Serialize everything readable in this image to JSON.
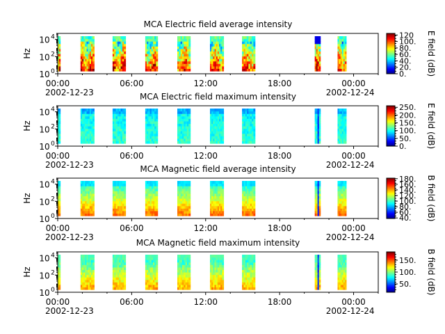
{
  "chart_data": [
    {
      "type": "heatmap",
      "title": "MCA  Electric field average intensity",
      "ylabel": "Hz",
      "y_scale": "log",
      "y_ticks": [
        {
          "base": "10",
          "exp": "0"
        },
        {
          "base": "10",
          "exp": "2"
        },
        {
          "base": "10",
          "exp": "4"
        }
      ],
      "x_ticks": [
        "00:00",
        "06:00",
        "12:00",
        "18:00",
        "00:00"
      ],
      "x_dates": [
        "2002-12-23",
        "2002-12-24"
      ],
      "colorbar_label": "E field (dB)",
      "colorbar_ticks": [
        "0.",
        "20.",
        "40.",
        "60.",
        "80.",
        "100.",
        "120"
      ],
      "colorbar_range": [
        0,
        125
      ],
      "style": "avg",
      "segments": [
        [
          0.0,
          0.2
        ],
        [
          1.85,
          2.95
        ],
        [
          4.45,
          5.5
        ],
        [
          7.1,
          8.1
        ],
        [
          9.7,
          10.75
        ],
        [
          12.35,
          13.45
        ],
        [
          14.95,
          16.0
        ],
        [
          20.85,
          21.3
        ],
        [
          22.7,
          23.4
        ]
      ]
    },
    {
      "type": "heatmap",
      "title": "MCA  Electric field maximum intensity",
      "ylabel": "Hz",
      "y_scale": "log",
      "y_ticks": [
        {
          "base": "10",
          "exp": "0"
        },
        {
          "base": "10",
          "exp": "2"
        },
        {
          "base": "10",
          "exp": "4"
        }
      ],
      "x_ticks": [
        "00:00",
        "06:00",
        "12:00",
        "18:00",
        "00:00"
      ],
      "x_dates": [
        "2002-12-23",
        "2002-12-24"
      ],
      "colorbar_label": "E field (dB)",
      "colorbar_ticks": [
        "0.",
        "50.",
        "100.",
        "150.",
        "200.",
        "250."
      ],
      "colorbar_range": [
        0,
        260
      ],
      "style": "max",
      "segments": [
        [
          0.0,
          0.2
        ],
        [
          1.85,
          2.95
        ],
        [
          4.45,
          5.5
        ],
        [
          7.1,
          8.1
        ],
        [
          9.7,
          10.75
        ],
        [
          12.35,
          13.45
        ],
        [
          14.95,
          16.0
        ],
        [
          20.85,
          21.3
        ],
        [
          22.7,
          23.4
        ]
      ]
    },
    {
      "type": "heatmap",
      "title": "MCA  Magnetic field average intensity",
      "ylabel": "Hz",
      "y_scale": "log",
      "y_ticks": [
        {
          "base": "10",
          "exp": "0"
        },
        {
          "base": "10",
          "exp": "2"
        },
        {
          "base": "10",
          "exp": "4"
        }
      ],
      "x_ticks": [
        "00:00",
        "06:00",
        "12:00",
        "18:00",
        "00:00"
      ],
      "x_dates": [
        "2002-12-23",
        "2002-12-24"
      ],
      "colorbar_label": "B field (dB)",
      "colorbar_ticks": [
        "40.",
        "60.",
        "80.",
        "100.",
        "120.",
        "140.",
        "160.",
        "180."
      ],
      "colorbar_range": [
        38,
        182
      ],
      "style": "bavg",
      "segments": [
        [
          0.0,
          0.2
        ],
        [
          1.85,
          2.95
        ],
        [
          4.45,
          5.5
        ],
        [
          7.1,
          8.1
        ],
        [
          9.7,
          10.75
        ],
        [
          12.35,
          13.45
        ],
        [
          14.95,
          16.0
        ],
        [
          20.85,
          21.3
        ],
        [
          22.7,
          23.4
        ]
      ]
    },
    {
      "type": "heatmap",
      "title": "MCA  Magnetic field maximum intensity",
      "ylabel": "Hz",
      "y_scale": "log",
      "y_ticks": [
        {
          "base": "10",
          "exp": "0"
        },
        {
          "base": "10",
          "exp": "2"
        },
        {
          "base": "10",
          "exp": "4"
        }
      ],
      "x_ticks": [
        "00:00",
        "06:00",
        "12:00",
        "18:00",
        "00:00"
      ],
      "x_dates": [
        "2002-12-23",
        "2002-12-24"
      ],
      "colorbar_label": "B field (dB)",
      "colorbar_ticks": [
        "50.",
        "100.",
        "150."
      ],
      "colorbar_range": [
        15,
        185
      ],
      "style": "bmax",
      "segments": [
        [
          0.0,
          0.2
        ],
        [
          1.85,
          2.95
        ],
        [
          4.45,
          5.5
        ],
        [
          7.1,
          8.1
        ],
        [
          9.7,
          10.75
        ],
        [
          12.35,
          13.45
        ],
        [
          14.95,
          16.0
        ],
        [
          20.85,
          21.3
        ],
        [
          22.7,
          23.4
        ]
      ]
    }
  ]
}
